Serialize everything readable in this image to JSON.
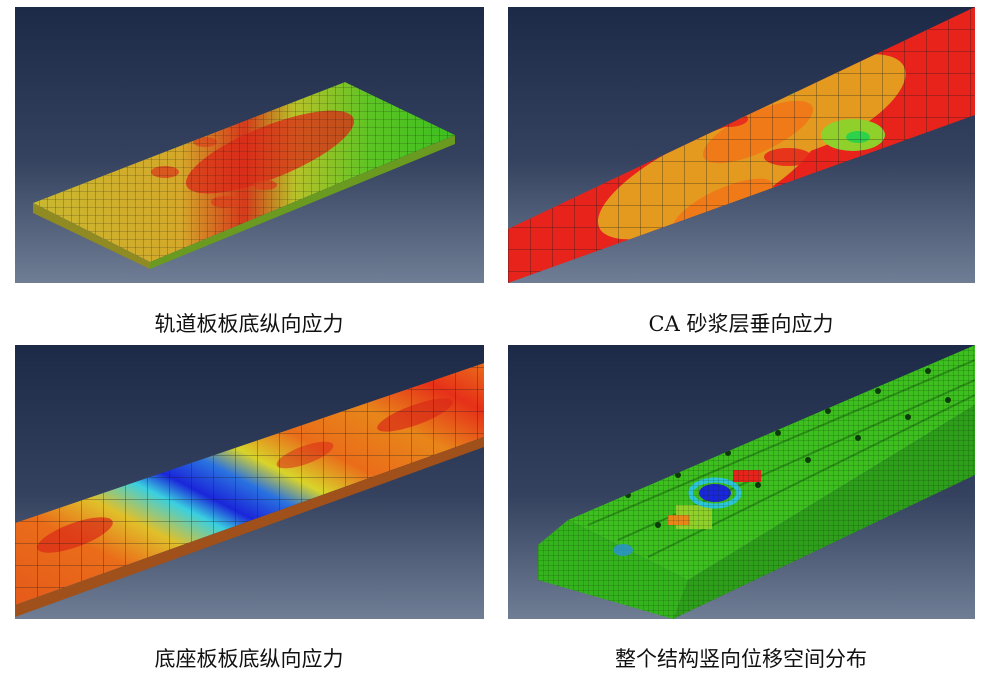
{
  "figures": [
    {
      "caption": "轨道板板底纵向应力"
    },
    {
      "caption": "CA 砂浆层垂向应力"
    },
    {
      "caption": "底座板板底纵向应力"
    },
    {
      "caption": "整个结构竖向位移空间分布"
    }
  ],
  "colors": {
    "background_top": "#1c2a48",
    "background_bottom": "#6f7d95",
    "contour_red": "#e8231c",
    "contour_orange": "#f07a18",
    "contour_yellow": "#d9b52a",
    "contour_green": "#3cbf1f",
    "contour_cyan": "#1fc6d8",
    "contour_blue": "#1a26d9"
  }
}
